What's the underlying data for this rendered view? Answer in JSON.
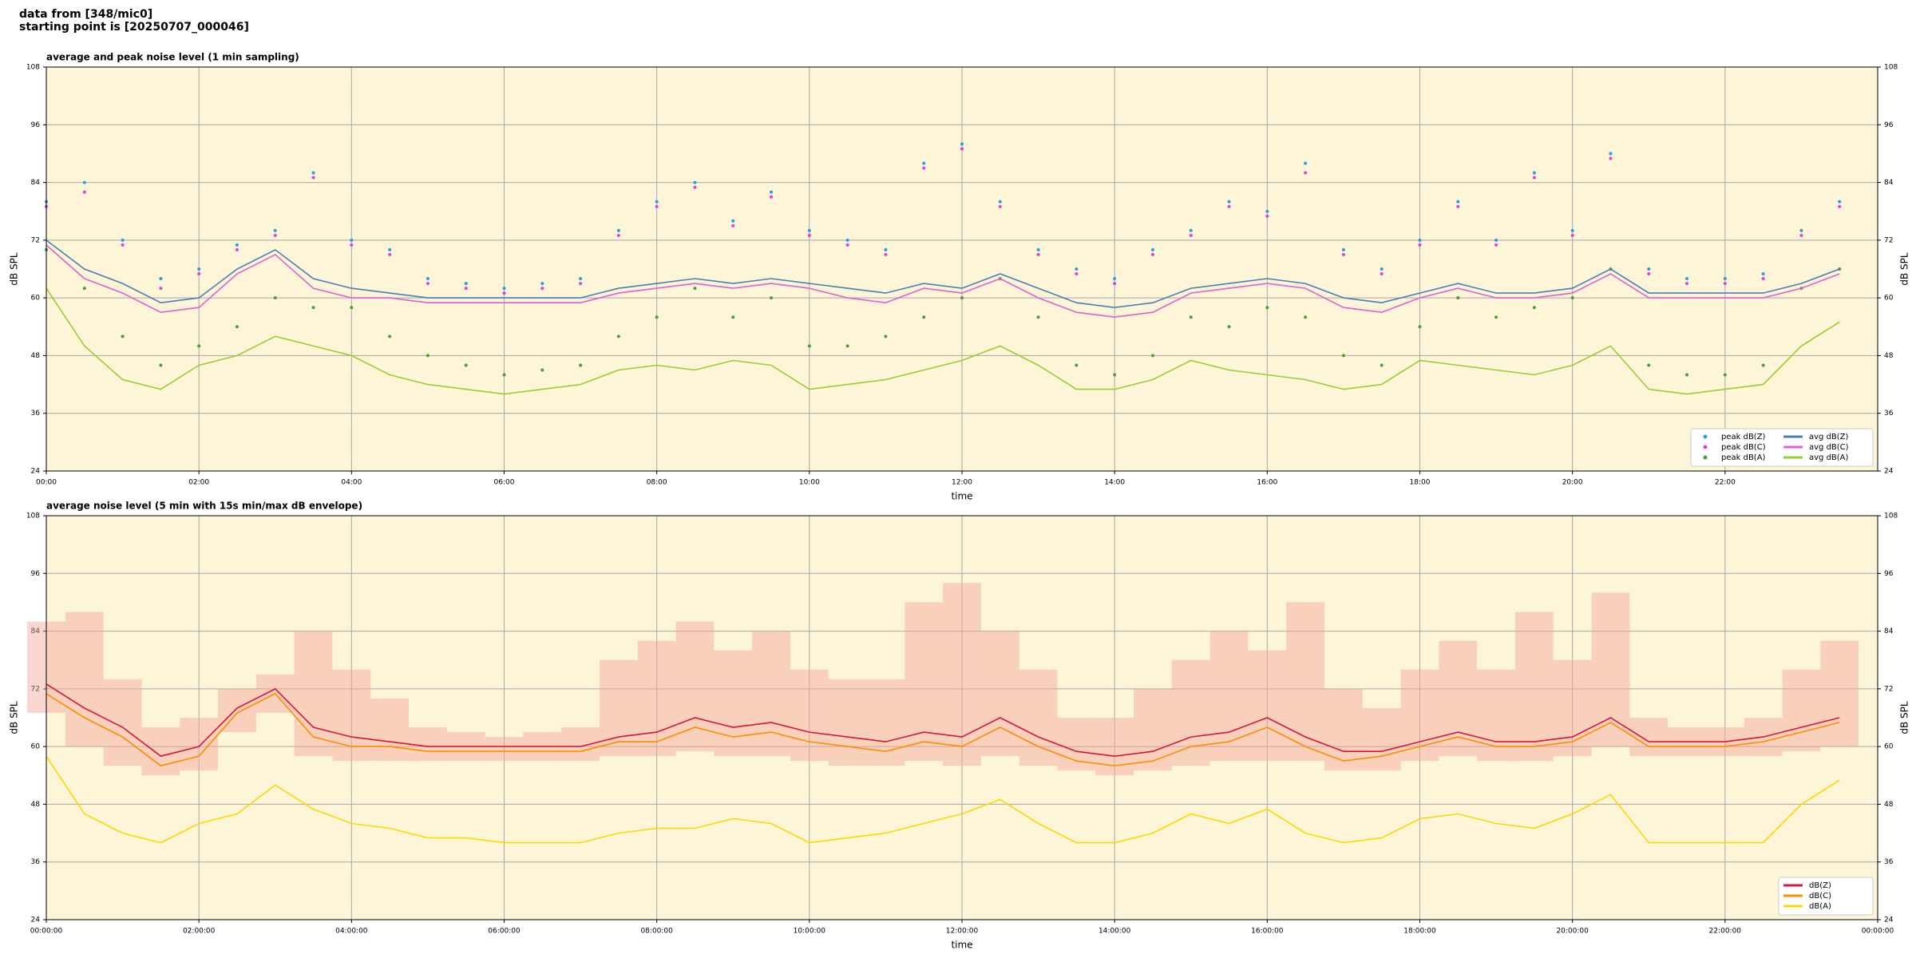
{
  "header": {
    "line1": "data from [348/mic0]",
    "line2": "starting point is [20250707_000046]"
  },
  "chart_data": [
    {
      "type": "line",
      "title": "average and peak noise level (1 min sampling)",
      "xlabel": "time",
      "ylabel": "dB SPL",
      "x": [
        0,
        0.5,
        1,
        1.5,
        2,
        2.5,
        3,
        3.5,
        4,
        4.5,
        5,
        5.5,
        6,
        6.5,
        7,
        7.5,
        8,
        8.5,
        9,
        9.5,
        10,
        10.5,
        11,
        11.5,
        12,
        12.5,
        13,
        13.5,
        14,
        14.5,
        15,
        15.5,
        16,
        16.5,
        17,
        17.5,
        18,
        18.5,
        19,
        19.5,
        20,
        20.5,
        21,
        21.5,
        22,
        22.5,
        23,
        23.5
      ],
      "xlim": [
        0,
        24
      ],
      "xticks": [
        {
          "value": 0,
          "label": "00:00"
        },
        {
          "value": 2,
          "label": "02:00"
        },
        {
          "value": 4,
          "label": "04:00"
        },
        {
          "value": 6,
          "label": "06:00"
        },
        {
          "value": 8,
          "label": "08:00"
        },
        {
          "value": 10,
          "label": "10:00"
        },
        {
          "value": 12,
          "label": "12:00"
        },
        {
          "value": 14,
          "label": "14:00"
        },
        {
          "value": 16,
          "label": "16:00"
        },
        {
          "value": 18,
          "label": "18:00"
        },
        {
          "value": 20,
          "label": "20:00"
        },
        {
          "value": 22,
          "label": "22:00"
        }
      ],
      "ylim": [
        24,
        108
      ],
      "yticks": [
        24,
        36,
        48,
        60,
        72,
        84,
        96,
        108
      ],
      "grid": true,
      "legend": "lower right",
      "series": [
        {
          "name": "peak dB(Z)",
          "type": "scatter",
          "color": "#2a9ee0",
          "values": [
            80,
            84,
            72,
            64,
            66,
            71,
            74,
            86,
            72,
            70,
            64,
            63,
            62,
            63,
            64,
            74,
            80,
            84,
            76,
            82,
            74,
            72,
            70,
            88,
            92,
            80,
            70,
            66,
            64,
            70,
            74,
            80,
            78,
            88,
            70,
            66,
            72,
            80,
            72,
            86,
            74,
            90,
            66,
            64,
            64,
            65,
            74,
            80
          ]
        },
        {
          "name": "peak dB(C)",
          "type": "scatter",
          "color": "#e040e0",
          "values": [
            79,
            82,
            71,
            62,
            65,
            70,
            73,
            85,
            71,
            69,
            63,
            62,
            61,
            62,
            63,
            73,
            79,
            83,
            75,
            81,
            73,
            71,
            69,
            87,
            91,
            79,
            69,
            65,
            63,
            69,
            73,
            79,
            77,
            86,
            69,
            65,
            71,
            79,
            71,
            85,
            73,
            89,
            65,
            63,
            63,
            64,
            73,
            79
          ]
        },
        {
          "name": "peak dB(A)",
          "type": "scatter",
          "color": "#4f9a3a",
          "values": [
            70,
            62,
            52,
            46,
            50,
            54,
            60,
            58,
            58,
            52,
            48,
            46,
            44,
            45,
            46,
            52,
            56,
            62,
            56,
            60,
            50,
            50,
            52,
            56,
            60,
            64,
            56,
            46,
            44,
            48,
            56,
            54,
            58,
            56,
            48,
            46,
            54,
            60,
            56,
            58,
            60,
            66,
            46,
            44,
            44,
            46,
            62,
            66
          ]
        },
        {
          "name": "avg dB(Z)",
          "type": "line",
          "color": "#4a7fb5",
          "values": [
            72,
            66,
            63,
            59,
            60,
            66,
            70,
            64,
            62,
            61,
            60,
            60,
            60,
            60,
            60,
            62,
            63,
            64,
            63,
            64,
            63,
            62,
            61,
            63,
            62,
            65,
            62,
            59,
            58,
            59,
            62,
            63,
            64,
            63,
            60,
            59,
            61,
            63,
            61,
            61,
            62,
            66,
            61,
            61,
            61,
            61,
            63,
            66
          ]
        },
        {
          "name": "avg dB(C)",
          "type": "line",
          "color": "#e060d0",
          "values": [
            71,
            64,
            61,
            57,
            58,
            65,
            69,
            62,
            60,
            60,
            59,
            59,
            59,
            59,
            59,
            61,
            62,
            63,
            62,
            63,
            62,
            60,
            59,
            62,
            61,
            64,
            60,
            57,
            56,
            57,
            61,
            62,
            63,
            62,
            58,
            57,
            60,
            62,
            60,
            60,
            61,
            65,
            60,
            60,
            60,
            60,
            62,
            65
          ]
        },
        {
          "name": "avg dB(A)",
          "type": "line",
          "color": "#9acd32",
          "values": [
            62,
            50,
            43,
            41,
            46,
            48,
            52,
            50,
            48,
            44,
            42,
            41,
            40,
            41,
            42,
            45,
            46,
            45,
            47,
            46,
            41,
            42,
            43,
            45,
            47,
            50,
            46,
            41,
            41,
            43,
            47,
            45,
            44,
            43,
            41,
            42,
            47,
            46,
            45,
            44,
            46,
            50,
            41,
            40,
            41,
            42,
            50,
            55
          ]
        }
      ]
    },
    {
      "type": "line",
      "title": "average noise level (5 min with 15s min/max dB envelope)",
      "xlabel": "time",
      "ylabel": "dB SPL",
      "x": [
        0,
        0.5,
        1,
        1.5,
        2,
        2.5,
        3,
        3.5,
        4,
        4.5,
        5,
        5.5,
        6,
        6.5,
        7,
        7.5,
        8,
        8.5,
        9,
        9.5,
        10,
        10.5,
        11,
        11.5,
        12,
        12.5,
        13,
        13.5,
        14,
        14.5,
        15,
        15.5,
        16,
        16.5,
        17,
        17.5,
        18,
        18.5,
        19,
        19.5,
        20,
        20.5,
        21,
        21.5,
        22,
        22.5,
        23,
        23.5
      ],
      "xlim": [
        0,
        24
      ],
      "xticks": [
        {
          "value": 0,
          "label": "00:00:00"
        },
        {
          "value": 2,
          "label": "02:00:00"
        },
        {
          "value": 4,
          "label": "04:00:00"
        },
        {
          "value": 6,
          "label": "06:00:00"
        },
        {
          "value": 8,
          "label": "08:00:00"
        },
        {
          "value": 10,
          "label": "10:00:00"
        },
        {
          "value": 12,
          "label": "12:00:00"
        },
        {
          "value": 14,
          "label": "14:00:00"
        },
        {
          "value": 16,
          "label": "16:00:00"
        },
        {
          "value": 18,
          "label": "18:00:00"
        },
        {
          "value": 20,
          "label": "20:00:00"
        },
        {
          "value": 22,
          "label": "22:00:00"
        },
        {
          "value": 24,
          "label": "00:00:00"
        }
      ],
      "ylim": [
        24,
        108
      ],
      "yticks": [
        24,
        36,
        48,
        60,
        72,
        84,
        96,
        108
      ],
      "grid": true,
      "legend": "lower right",
      "envelope": {
        "color": "#f4a39a",
        "lower": [
          67,
          60,
          56,
          54,
          55,
          63,
          67,
          58,
          57,
          57,
          57,
          57,
          57,
          57,
          57,
          58,
          58,
          59,
          58,
          58,
          57,
          56,
          56,
          57,
          56,
          58,
          56,
          55,
          54,
          55,
          56,
          57,
          57,
          57,
          55,
          55,
          57,
          58,
          57,
          57,
          58,
          60,
          58,
          58,
          58,
          58,
          59,
          60
        ],
        "upper": [
          86,
          88,
          74,
          64,
          66,
          72,
          75,
          84,
          76,
          70,
          64,
          63,
          62,
          63,
          64,
          78,
          82,
          86,
          80,
          84,
          76,
          74,
          74,
          90,
          94,
          84,
          76,
          66,
          66,
          72,
          78,
          84,
          80,
          90,
          72,
          68,
          76,
          82,
          76,
          88,
          78,
          92,
          66,
          64,
          64,
          66,
          76,
          82
        ]
      },
      "series": [
        {
          "name": "dB(Z)",
          "type": "line",
          "color": "#dc143c",
          "values": [
            73,
            68,
            64,
            58,
            60,
            68,
            72,
            64,
            62,
            61,
            60,
            60,
            60,
            60,
            60,
            62,
            63,
            66,
            64,
            65,
            63,
            62,
            61,
            63,
            62,
            66,
            62,
            59,
            58,
            59,
            62,
            63,
            66,
            62,
            59,
            59,
            61,
            63,
            61,
            61,
            62,
            66,
            61,
            61,
            61,
            62,
            64,
            66
          ]
        },
        {
          "name": "dB(C)",
          "type": "line",
          "color": "#ff8c00",
          "values": [
            71,
            66,
            62,
            56,
            58,
            67,
            71,
            62,
            60,
            60,
            59,
            59,
            59,
            59,
            59,
            61,
            61,
            64,
            62,
            63,
            61,
            60,
            59,
            61,
            60,
            64,
            60,
            57,
            56,
            57,
            60,
            61,
            64,
            60,
            57,
            58,
            60,
            62,
            60,
            60,
            61,
            65,
            60,
            60,
            60,
            61,
            63,
            65
          ]
        },
        {
          "name": "dB(A)",
          "type": "line",
          "color": "#ffd700",
          "values": [
            58,
            46,
            42,
            40,
            44,
            46,
            52,
            47,
            44,
            43,
            41,
            41,
            40,
            40,
            40,
            42,
            43,
            43,
            45,
            44,
            40,
            41,
            42,
            44,
            46,
            49,
            44,
            40,
            40,
            42,
            46,
            44,
            47,
            42,
            40,
            41,
            45,
            46,
            44,
            43,
            46,
            50,
            40,
            40,
            40,
            40,
            48,
            53
          ]
        }
      ]
    }
  ]
}
